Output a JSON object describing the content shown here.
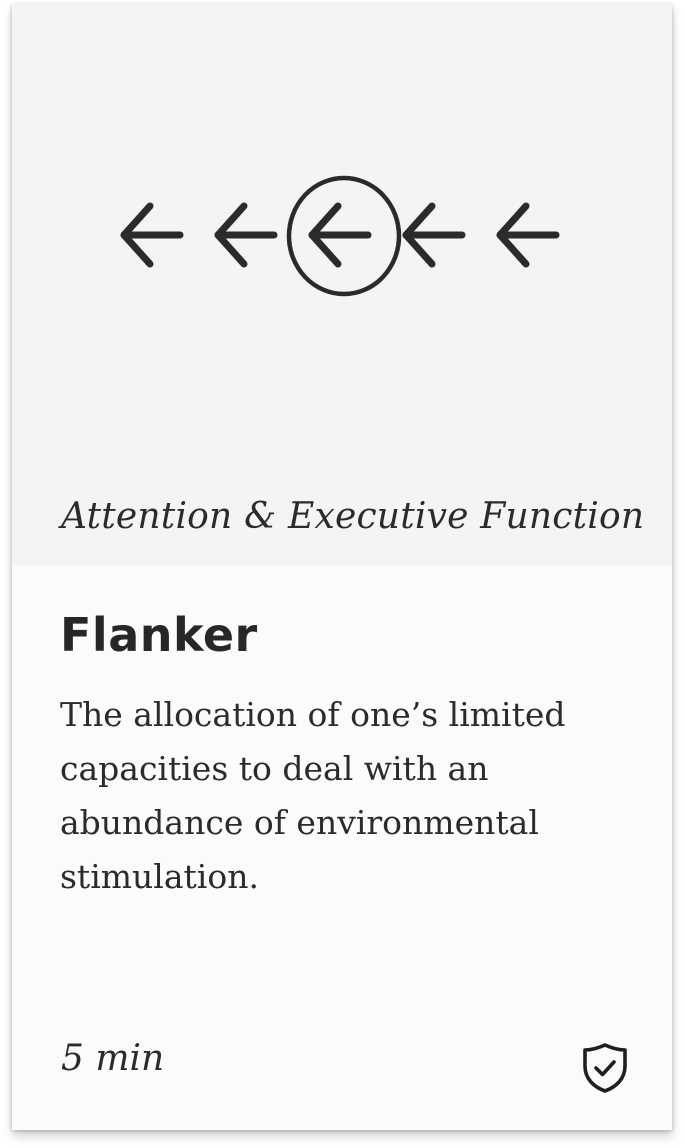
{
  "card": {
    "category": "Attention & Executive Function",
    "title": "Flanker",
    "description": "The allocation of one’s limited capacities to deal with an abundance of environmental stimulation.",
    "duration": "5 min",
    "hero_illustration": {
      "icons": [
        "arrow-left-icon",
        "arrow-left-icon",
        "arrow-left-icon-circled",
        "arrow-left-icon",
        "arrow-left-icon"
      ]
    },
    "status_icon": "shield-check-icon"
  },
  "colors": {
    "ink": "#2b2b2b",
    "hero_background": "#f4f4f4",
    "card_background": "#fbfbfb"
  }
}
